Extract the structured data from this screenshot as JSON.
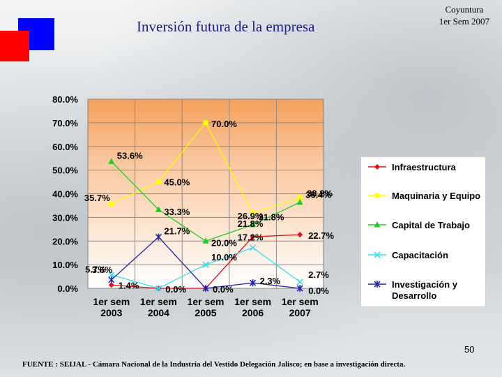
{
  "header": {
    "title": "Inversión futura de la empresa",
    "corner_line1": "Coyuntura",
    "corner_line2": "1er Sem 2007"
  },
  "chart_data": {
    "type": "line",
    "categories": [
      "1er sem 2003",
      "1er sem 2004",
      "1er sem 2005",
      "1er sem 2006",
      "1er sem 2007"
    ],
    "category_lines": [
      [
        "1er sem",
        "2003"
      ],
      [
        "1er sem",
        "2004"
      ],
      [
        "1er sem",
        "2005"
      ],
      [
        "1er sem",
        "2006"
      ],
      [
        "1er sem",
        "2007"
      ]
    ],
    "ylim": [
      0,
      80
    ],
    "yticks": [
      "0.0%",
      "10.0%",
      "20.0%",
      "30.0%",
      "40.0%",
      "50.0%",
      "60.0%",
      "70.0%",
      "80.0%"
    ],
    "grid": true,
    "legend_position": "right",
    "series": [
      {
        "name": "Infraestructura",
        "color": "#e0101a",
        "marker": "diamond",
        "values": [
          1.4,
          0.0,
          0.0,
          21.8,
          22.7
        ],
        "labels": [
          "1.4%",
          "0.0%",
          "0.0%",
          "21.8%",
          "22.7%"
        ]
      },
      {
        "name": "Maquinaria y Equipo",
        "color": "#ffff00",
        "marker": "square",
        "values": [
          35.7,
          45.0,
          70.0,
          31.8,
          38.2
        ],
        "labels": [
          "35.7%",
          "45.0%",
          "70.0%",
          "31.8%",
          "38.2%"
        ]
      },
      {
        "name": "Capital de Trabajo",
        "color": "#22cc22",
        "marker": "triangle",
        "values": [
          53.6,
          33.3,
          20.0,
          26.9,
          36.4
        ],
        "labels": [
          "53.6%",
          "33.3%",
          "20.0%",
          "26.9%",
          "36.4%"
        ]
      },
      {
        "name": "Capacitación",
        "color": "#33e0f0",
        "marker": "x",
        "values": [
          5.7,
          0.0,
          10.0,
          17.2,
          2.7
        ],
        "labels": [
          "5.7%",
          "",
          "10.0%",
          "17.2%",
          "2.7%"
        ]
      },
      {
        "name": "Investigación y Desarrollo",
        "name_lines": [
          "Investigación y",
          "Desarrollo"
        ],
        "color": "#2222aa",
        "marker": "star",
        "values": [
          3.6,
          21.7,
          0.0,
          2.3,
          0.0
        ],
        "labels": [
          "3.6%",
          "21.7%",
          "",
          "2.3%",
          "0.0%"
        ]
      }
    ]
  },
  "footer": {
    "page_number": "50",
    "source": "FUENTE : SEIJAL - Cámara Nacional de la Industria del Vestido Delegación Jalisco; en base a investigación directa."
  }
}
